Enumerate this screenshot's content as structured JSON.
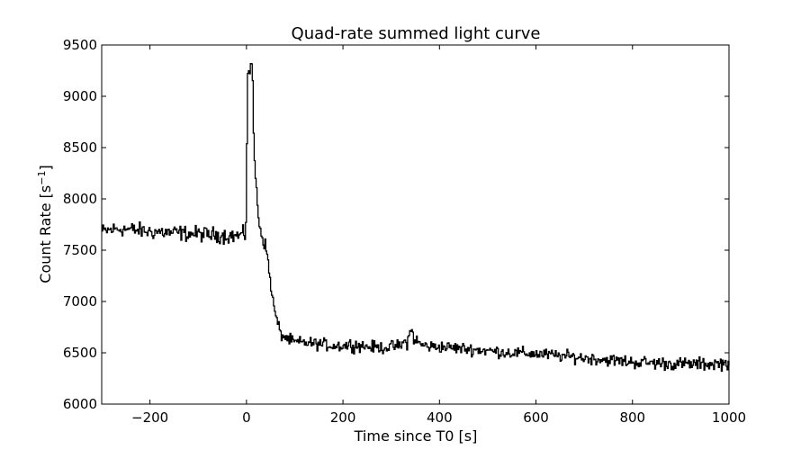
{
  "chart_data": {
    "type": "line",
    "title": "Quad-rate summed light curve",
    "xlabel": "Time since T0 [s]",
    "ylabel_main": "Count Rate [s",
    "ylabel_sup": "−1",
    "ylabel_close": "]",
    "xlim": [
      -300,
      1000
    ],
    "ylim": [
      6000,
      9500
    ],
    "xticks": [
      -200,
      0,
      200,
      400,
      600,
      800,
      1000
    ],
    "xtick_labels": [
      "−200",
      "0",
      "200",
      "400",
      "600",
      "800",
      "1000"
    ],
    "yticks": [
      6000,
      6500,
      7000,
      7500,
      8000,
      8500,
      9000,
      9500
    ],
    "ytick_labels": [
      "6000",
      "6500",
      "7000",
      "7500",
      "8000",
      "8500",
      "9000",
      "9500"
    ],
    "grid": false,
    "line_color": "#000000",
    "series": [
      {
        "step": 2,
        "x": [
          -300,
          -280,
          -260,
          -240,
          -220,
          -200,
          -180,
          -160,
          -140,
          -120,
          -100,
          -80,
          -60,
          -40,
          -20,
          -4,
          -2,
          0,
          2,
          4,
          6,
          8,
          10,
          12,
          14,
          16,
          18,
          20,
          22,
          24,
          26,
          28,
          30,
          34,
          38,
          42,
          46,
          50,
          54,
          58,
          62,
          66,
          70,
          80,
          90,
          100,
          120,
          140,
          160,
          180,
          200,
          220,
          250,
          280,
          300,
          320,
          336,
          340,
          344,
          350,
          360,
          380,
          400,
          450,
          500,
          550,
          600,
          650,
          700,
          750,
          800,
          850,
          900,
          950,
          1000
        ],
        "y": [
          7680,
          7700,
          7710,
          7700,
          7690,
          7680,
          7680,
          7670,
          7670,
          7660,
          7660,
          7650,
          7650,
          7640,
          7640,
          7650,
          7800,
          8600,
          9300,
          9150,
          9300,
          9350,
          9250,
          9000,
          8700,
          8400,
          8200,
          8050,
          7950,
          7850,
          7780,
          7720,
          7650,
          7600,
          7550,
          7450,
          7300,
          7150,
          7000,
          6900,
          6820,
          6750,
          6680,
          6650,
          6620,
          6600,
          6600,
          6590,
          6580,
          6570,
          6570,
          6580,
          6560,
          6550,
          6560,
          6570,
          6640,
          6720,
          6680,
          6620,
          6580,
          6560,
          6560,
          6540,
          6520,
          6500,
          6490,
          6470,
          6450,
          6430,
          6410,
          6400,
          6390,
          6390,
          6400
        ],
        "noise": [
          65,
          65,
          65,
          65,
          65,
          65,
          65,
          65,
          65,
          65,
          65,
          65,
          65,
          65,
          65,
          65,
          80,
          150,
          150,
          150,
          150,
          150,
          150,
          150,
          150,
          120,
          100,
          90,
          80,
          75,
          70,
          65,
          60,
          55,
          55,
          55,
          50,
          50,
          50,
          50,
          50,
          50,
          50,
          50,
          50,
          50,
          50,
          50,
          50,
          50,
          55,
          55,
          50,
          50,
          50,
          50,
          80,
          90,
          80,
          60,
          55,
          50,
          50,
          50,
          50,
          50,
          50,
          50,
          50,
          50,
          55,
          55,
          55,
          55,
          55
        ]
      }
    ]
  }
}
